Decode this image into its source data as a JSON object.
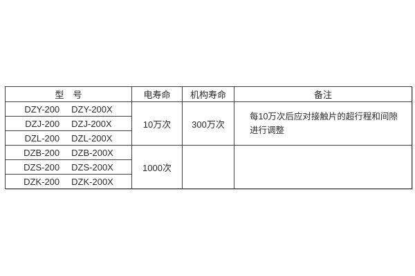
{
  "table": {
    "headers": {
      "model": "型　号",
      "electrical_life": "电寿命",
      "mechanical_life": "机构寿命",
      "remarks": "备注"
    },
    "model_rows": [
      {
        "a": "DZY-200",
        "b": "DZY-200X"
      },
      {
        "a": "DZJ-200",
        "b": "DZJ-200X"
      },
      {
        "a": "DZL-200",
        "b": "DZL-200X"
      },
      {
        "a": "DZB-200",
        "b": "DZB-200X"
      },
      {
        "a": "DZS-200",
        "b": "DZS-200X"
      },
      {
        "a": "DZK-200",
        "b": "DZK-200X"
      }
    ],
    "electrical_life": {
      "group1": "10万次",
      "group2": "1000次"
    },
    "mechanical_life": {
      "group1": "300万次",
      "group2": ""
    },
    "remarks": {
      "group1_line1": "每10万次后应对接触片的超行程和间隙",
      "group1_line2": "进行调整",
      "group2": ""
    }
  },
  "colors": {
    "border": "#3f3f3f",
    "text": "#2a2a2a",
    "background": "#ffffff"
  }
}
